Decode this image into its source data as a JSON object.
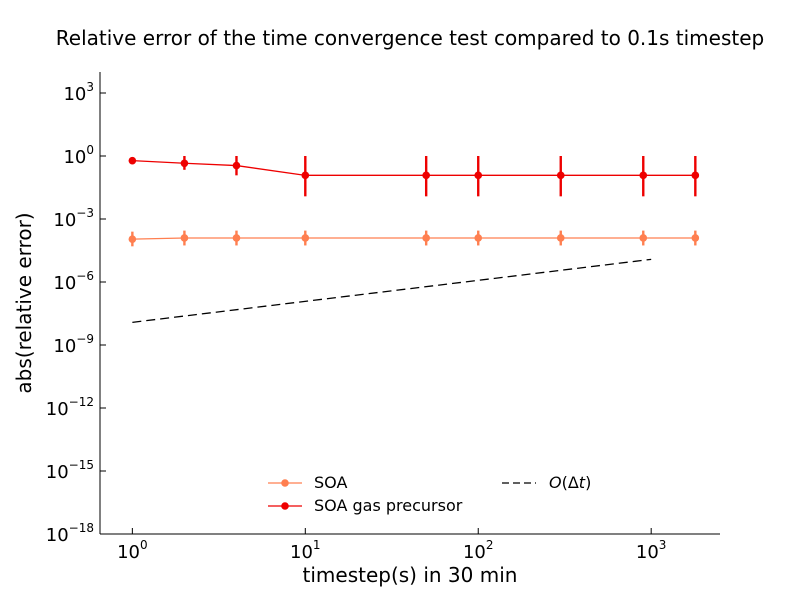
{
  "chart_data": {
    "type": "line",
    "title": "Relative error of the time convergence test compared to 0.1s timestep",
    "xlabel": "timestep(s) in 30 min",
    "ylabel": "abs(relative error)",
    "xscale": "log",
    "yscale": "log",
    "xlim": [
      0.65,
      2500
    ],
    "ylim": [
      1e-18,
      10000.0
    ],
    "x_ticks": [
      {
        "base": "10",
        "exp": "0",
        "value": 1
      },
      {
        "base": "10",
        "exp": "1",
        "value": 10
      },
      {
        "base": "10",
        "exp": "2",
        "value": 100
      },
      {
        "base": "10",
        "exp": "3",
        "value": 1000
      }
    ],
    "y_ticks": [
      {
        "base": "10",
        "exp": "−18",
        "value": 1e-18
      },
      {
        "base": "10",
        "exp": "−15",
        "value": 1e-15
      },
      {
        "base": "10",
        "exp": "−12",
        "value": 1e-12
      },
      {
        "base": "10",
        "exp": "−9",
        "value": 1e-09
      },
      {
        "base": "10",
        "exp": "−6",
        "value": 1e-06
      },
      {
        "base": "10",
        "exp": "−3",
        "value": 0.001
      },
      {
        "base": "10",
        "exp": "0",
        "value": 1
      },
      {
        "base": "10",
        "exp": "3",
        "value": 1000
      }
    ],
    "series": [
      {
        "name": "SOA",
        "color": "#ff7f50",
        "style": "solid-marker",
        "x": [
          1,
          2,
          4,
          10,
          50,
          100,
          300,
          900,
          1800
        ],
        "y": [
          0.00011,
          0.000125,
          0.000125,
          0.000125,
          0.000125,
          0.000125,
          0.000125,
          0.000125,
          0.000125
        ],
        "err_low": [
          5e-05,
          5.5e-05,
          5.5e-05,
          5.5e-05,
          5.5e-05,
          5.5e-05,
          5.5e-05,
          5.5e-05,
          5.5e-05
        ],
        "err_high": [
          0.00025,
          0.00028,
          0.00028,
          0.00028,
          0.00028,
          0.00028,
          0.00028,
          0.00028,
          0.00028
        ]
      },
      {
        "name": "SOA gas precursor",
        "color": "#ee0000",
        "style": "solid-marker",
        "x": [
          1,
          2,
          4,
          10,
          50,
          100,
          300,
          900,
          1800
        ],
        "y": [
          0.6,
          0.45,
          0.35,
          0.12,
          0.12,
          0.12,
          0.12,
          0.12,
          0.12
        ],
        "err_low": [
          0.6,
          0.22,
          0.12,
          0.012,
          0.012,
          0.012,
          0.012,
          0.012,
          0.012
        ],
        "err_high": [
          0.6,
          1.0,
          1.0,
          1.0,
          1.0,
          1.0,
          1.0,
          1.0,
          1.0
        ]
      },
      {
        "name": "O(Δt)",
        "color": "#000000",
        "style": "dashed",
        "x": [
          1,
          1000
        ],
        "y": [
          1.2e-08,
          1.2e-05
        ]
      }
    ],
    "legend": {
      "location": "lower center",
      "entries": [
        {
          "label": "SOA",
          "series": 0
        },
        {
          "label": "SOA gas precursor",
          "series": 1
        },
        {
          "label_prefix": "O",
          "label_mid": "(Δ",
          "label_t": "t",
          "label_suffix": ")",
          "series": 2
        }
      ]
    },
    "grid": false
  }
}
